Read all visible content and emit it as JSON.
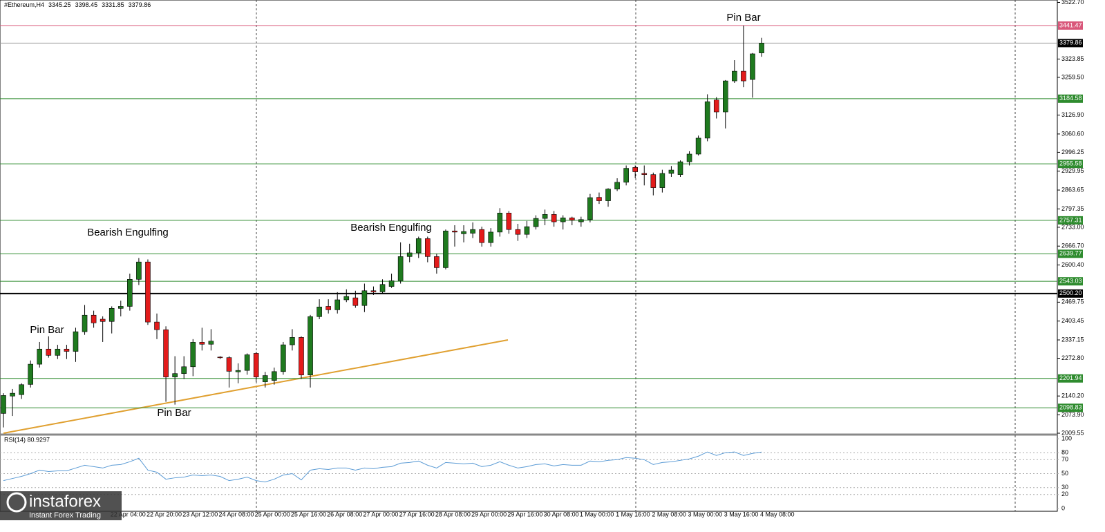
{
  "chart_data": [
    {
      "type": "candlestick",
      "title": "#Ethereum,H4",
      "ohlc": [
        3345.25,
        3398.45,
        3331.85,
        3379.86
      ],
      "categories": [
        null,
        null,
        null,
        null,
        null,
        null,
        null,
        null,
        null,
        null,
        null,
        null,
        "22 Apr 04:00",
        null,
        null,
        null,
        "22 Apr 20:00",
        null,
        null,
        null,
        "23 Apr 12:00",
        null,
        null,
        null,
        "24 Apr 08:00",
        null,
        null,
        null,
        "25 Apr 00:00",
        null,
        null,
        null,
        "25 Apr 16:00",
        null,
        null,
        null,
        "26 Apr 08:00",
        null,
        null,
        null,
        "27 Apr 00:00",
        null,
        null,
        null,
        "27 Apr 16:00",
        null,
        null,
        null,
        "28 Apr 08:00",
        null,
        null,
        null,
        "29 Apr 00:00",
        null,
        null,
        null,
        "29 Apr 16:00",
        null,
        null,
        null,
        "30 Apr 08:00",
        null,
        null,
        null,
        "1 May 00:00",
        null,
        null,
        null,
        "1 May 16:00",
        null,
        null,
        null,
        "2 May 08:00",
        null,
        null,
        null,
        "3 May 00:00",
        null,
        null,
        null,
        "3 May 16:00",
        null,
        null,
        null,
        "4 May 08:00"
      ],
      "open": [
        2079,
        2140,
        2145,
        2181,
        2252,
        2305,
        2283,
        2305,
        2297,
        2366,
        2424,
        2410,
        2402,
        2448,
        2455,
        2550,
        2611,
        2400,
        2373,
        2207,
        2219,
        2243,
        2329,
        2322,
        2277,
        2275,
        2225,
        2230,
        2290,
        2190,
        2195,
        2226,
        2320,
        2346,
        2214,
        2419,
        2455,
        2443,
        2478,
        2485,
        2458,
        2510,
        2506,
        2525,
        2545,
        2630,
        2643,
        2693,
        2630,
        2591,
        2720,
        2710,
        2712,
        2725,
        2679,
        2716,
        2783,
        2725,
        2708,
        2735,
        2764,
        2778,
        2752,
        2766,
        2752,
        2760,
        2838,
        2826,
        2867,
        2891,
        2943,
        2922,
        2918,
        2872,
        2922,
        2918,
        2963,
        2990,
        3046,
        3180,
        3138,
        3247,
        3281,
        3252,
        3345.25
      ],
      "high": [
        2150,
        2165,
        2185,
        2265,
        2330,
        2350,
        2320,
        2320,
        2380,
        2460,
        2440,
        2420,
        2455,
        2475,
        2570,
        2625,
        2620,
        2430,
        2385,
        2280,
        2280,
        2340,
        2380,
        2375,
        2280,
        2280,
        2255,
        2290,
        2295,
        2225,
        2240,
        2330,
        2375,
        2350,
        2425,
        2480,
        2480,
        2505,
        2515,
        2510,
        2535,
        2525,
        2550,
        2570,
        2680,
        2675,
        2700,
        2700,
        2640,
        2725,
        2740,
        2740,
        2750,
        2735,
        2730,
        2800,
        2790,
        2745,
        2755,
        2775,
        2795,
        2790,
        2775,
        2770,
        2770,
        2850,
        2855,
        2870,
        2905,
        2950,
        2950,
        2950,
        2925,
        2935,
        2948,
        2968,
        3000,
        3055,
        3200,
        3190,
        3250,
        3320,
        3441.47,
        3345,
        3398.45
      ],
      "low": [
        2030,
        2070,
        2130,
        2170,
        2240,
        2275,
        2270,
        2270,
        2260,
        2355,
        2380,
        2330,
        2360,
        2420,
        2440,
        2530,
        2390,
        2340,
        2120,
        2110,
        2200,
        2210,
        2300,
        2300,
        2270,
        2170,
        2185,
        2215,
        2190,
        2170,
        2180,
        2215,
        2300,
        2200,
        2170,
        2410,
        2430,
        2430,
        2470,
        2450,
        2435,
        2495,
        2500,
        2520,
        2535,
        2610,
        2625,
        2610,
        2570,
        2585,
        2665,
        2680,
        2695,
        2665,
        2665,
        2700,
        2710,
        2685,
        2695,
        2725,
        2740,
        2735,
        2725,
        2740,
        2735,
        2750,
        2815,
        2805,
        2860,
        2880,
        2905,
        2880,
        2845,
        2855,
        2910,
        2910,
        2950,
        2985,
        3035,
        3115,
        3080,
        3240,
        3225,
        3188,
        3331.85
      ],
      "close": [
        2142,
        2150,
        2180,
        2252,
        2305,
        2283,
        2305,
        2297,
        2366,
        2424,
        2397,
        2402,
        2448,
        2455,
        2550,
        2611,
        2400,
        2373,
        2207,
        2219,
        2243,
        2329,
        2322,
        2333,
        2275,
        2227,
        2230,
        2285,
        2207,
        2212,
        2226,
        2320,
        2346,
        2214,
        2419,
        2453,
        2443,
        2478,
        2490,
        2458,
        2510,
        2506,
        2532,
        2545,
        2630,
        2643,
        2693,
        2630,
        2591,
        2720,
        2716,
        2718,
        2725,
        2679,
        2716,
        2783,
        2725,
        2708,
        2735,
        2764,
        2778,
        2752,
        2766,
        2758,
        2760,
        2837,
        2826,
        2867,
        2891,
        2940,
        2928,
        2918,
        2872,
        2922,
        2934,
        2963,
        2990,
        3046,
        3174,
        3138,
        3247,
        3281,
        3247,
        3342,
        3379.86
      ],
      "up_color": "#1f7a1f",
      "down_color": "#e31b1b",
      "ylim": [
        2009.55,
        3522.7
      ],
      "yticks": [
        {
          "value": 3522.7,
          "label": "3522.70"
        },
        3323.85,
        {
          "value": 3259.5,
          "label": "3259.50"
        },
        {
          "value": 3126.9,
          "label": "3126.90"
        },
        {
          "value": 3060.6,
          "label": "3060.60"
        },
        2996.25,
        2929.95,
        2863.65,
        2797.35,
        {
          "value": 2733,
          "label": "2733.00"
        },
        {
          "value": 2666.7,
          "label": "2666.70"
        },
        {
          "value": 2600.4,
          "label": "2600.40"
        },
        2469.75,
        2403.45,
        2337.15,
        {
          "value": 2272.8,
          "label": "2272.80"
        },
        {
          "value": 2140.2,
          "label": "2140.20"
        },
        {
          "value": 2073.9,
          "label": "2073.90"
        },
        2009.55
      ],
      "levels": [
        {
          "value": 3441.47,
          "color": "#d9577a"
        },
        {
          "value": 3379.86,
          "color": "#999999"
        },
        {
          "value": 3184.58,
          "color": "#2e8b2e"
        },
        {
          "value": 2955.58,
          "color": "#2e8b2e"
        },
        {
          "value": 2757.31,
          "color": "#2e8b2e"
        },
        {
          "value": 2639.77,
          "color": "#2e8b2e"
        },
        {
          "value": 2543.03,
          "color": "#2e8b2e"
        },
        {
          "value": 2500.2,
          "label": "2500.20",
          "color": "#000000"
        },
        {
          "value": 2201.94,
          "color": "#2e8b2e"
        },
        {
          "value": 2098.83,
          "color": "#2e8b2e"
        }
      ],
      "annotations": [
        "Pin Bar",
        "Bearish Engulfing",
        "Pin Bar",
        "Bearish Engulfing",
        "Pin Bar"
      ]
    },
    {
      "type": "line",
      "title": "RSI(14) 80.9297",
      "color": "#5b9bd5",
      "values": [
        40,
        43,
        46,
        50,
        55,
        53,
        54,
        54,
        58,
        62,
        60,
        58,
        62,
        63,
        67,
        72,
        55,
        52,
        42,
        44,
        45,
        48,
        47,
        48,
        46,
        40,
        42,
        45,
        40,
        38,
        42,
        48,
        50,
        41,
        55,
        57,
        56,
        58,
        58,
        55,
        58,
        57,
        59,
        60,
        65,
        66,
        68,
        62,
        58,
        66,
        65,
        64,
        65,
        60,
        62,
        67,
        62,
        58,
        60,
        63,
        64,
        61,
        63,
        62,
        62,
        68,
        67,
        69,
        70,
        73,
        72,
        70,
        63,
        66,
        67,
        69,
        71,
        75,
        81,
        76,
        80,
        81,
        76,
        79,
        80.93
      ],
      "ylim": [
        0,
        100
      ],
      "yticks": [
        100,
        80,
        70,
        50,
        30,
        20,
        0
      ]
    }
  ],
  "branding": {
    "name": "instaforex",
    "tagline": "Instant Forex Trading"
  }
}
